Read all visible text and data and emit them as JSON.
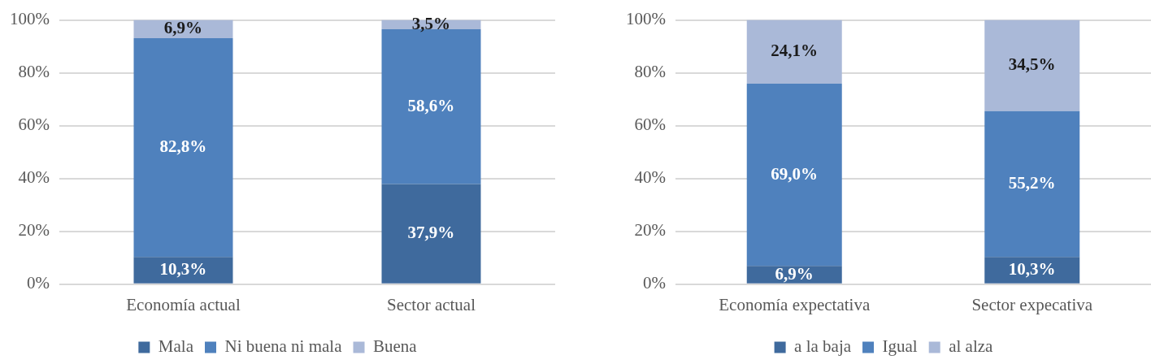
{
  "chart_data": [
    {
      "type": "bar",
      "stacked": true,
      "categories": [
        "Economía actual",
        "Sector actual"
      ],
      "series": [
        {
          "name": "Mala",
          "color": "#3f6a9d",
          "values": [
            10.3,
            37.9
          ],
          "value_labels": [
            "10,3%",
            "37,9%"
          ]
        },
        {
          "name": "Ni buena ni mala",
          "color": "#4f81bd",
          "values": [
            82.8,
            58.6
          ],
          "value_labels": [
            "82,8%",
            "58,6%"
          ]
        },
        {
          "name": "Buena",
          "color": "#aab9d8",
          "values": [
            6.9,
            3.5
          ],
          "value_labels": [
            "6,9%",
            "3,5%"
          ]
        }
      ],
      "ylim": [
        0,
        100
      ],
      "yticks": [
        {
          "value": 0,
          "label": "0%"
        },
        {
          "value": 20,
          "label": "20%"
        },
        {
          "value": 40,
          "label": "40%"
        },
        {
          "value": 60,
          "label": "60%"
        },
        {
          "value": 80,
          "label": "80%"
        },
        {
          "value": 100,
          "label": "100%"
        }
      ],
      "grid": "y",
      "legend": "bottom"
    },
    {
      "type": "bar",
      "stacked": true,
      "categories": [
        "Economía expectativa",
        "Sector expecativa"
      ],
      "series": [
        {
          "name": "a la baja",
          "color": "#3f6a9d",
          "values": [
            6.9,
            10.3
          ],
          "value_labels": [
            "6,9%",
            "10,3%"
          ]
        },
        {
          "name": "Igual",
          "color": "#4f81bd",
          "values": [
            69.0,
            55.2
          ],
          "value_labels": [
            "69,0%",
            "55,2%"
          ]
        },
        {
          "name": "al alza",
          "color": "#aab9d8",
          "values": [
            24.1,
            34.5
          ],
          "value_labels": [
            "24,1%",
            "34,5%"
          ]
        }
      ],
      "ylim": [
        0,
        100
      ],
      "yticks": [
        {
          "value": 0,
          "label": "0%"
        },
        {
          "value": 20,
          "label": "20%"
        },
        {
          "value": 40,
          "label": "40%"
        },
        {
          "value": 60,
          "label": "60%"
        },
        {
          "value": 80,
          "label": "80%"
        },
        {
          "value": 100,
          "label": "100%"
        }
      ],
      "grid": "y",
      "legend": "bottom"
    }
  ]
}
